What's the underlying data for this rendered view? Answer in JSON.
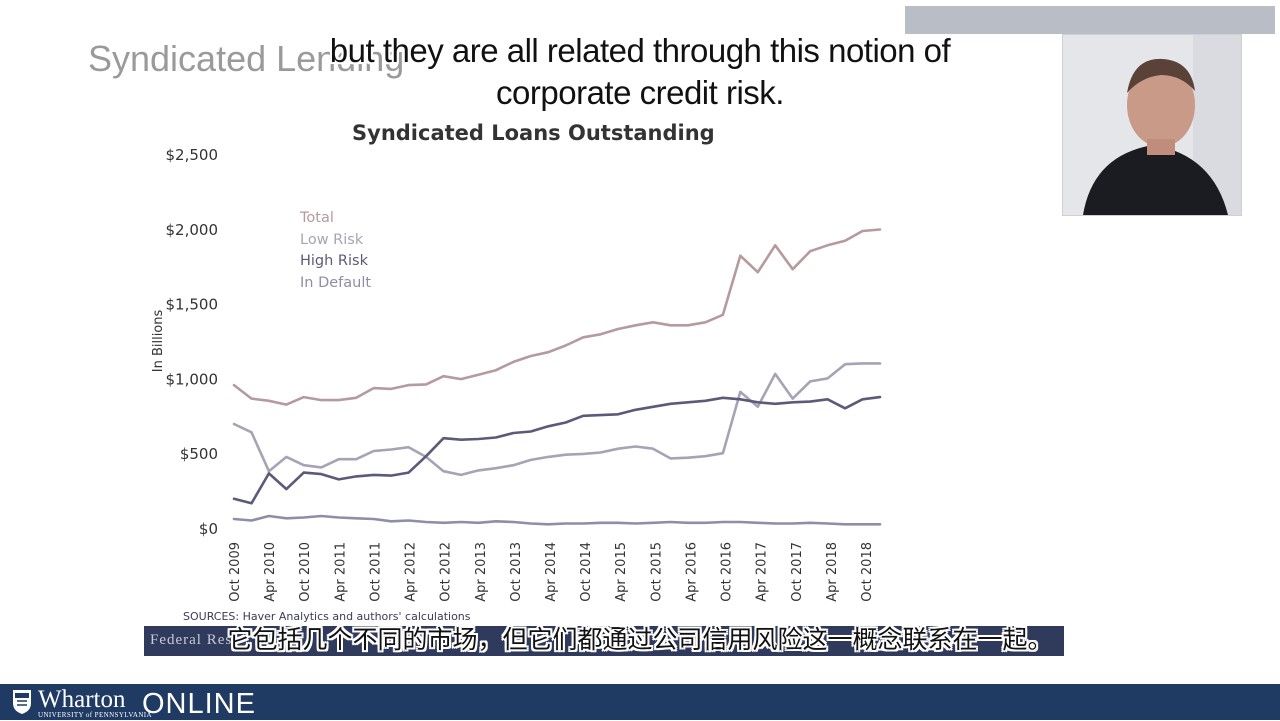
{
  "slide": {
    "title": "Syndicated Lending",
    "sources": "SOURCES: Haver Analytics and authors' calculations",
    "banner_text": "Federal Res"
  },
  "captions": {
    "english": "but they are all related through this notion of corporate credit risk.",
    "chinese": "它包括几个不同的市场，但它们都通过公司信用风险这一概念联系在一起。"
  },
  "footer": {
    "brand": "Wharton",
    "brand_sub": "UNIVERSITY of PENNSYLVANIA",
    "online": "ONLINE",
    "color": "#1f3a63"
  },
  "colors": {
    "total": "#b59a9e",
    "low_risk": "#a7a3b4",
    "high_risk": "#5a5a7a",
    "in_default": "#8e8ea6"
  },
  "chart_data": {
    "type": "line",
    "title": "Syndicated Loans Outstanding",
    "ylabel": "In Billions",
    "xlabel": "",
    "ylim": [
      0,
      2500
    ],
    "yticks": [
      {
        "value": 0,
        "label": "$0"
      },
      {
        "value": 500,
        "label": "$500"
      },
      {
        "value": 1000,
        "label": "$1,000"
      },
      {
        "value": 1500,
        "label": "$1,500"
      },
      {
        "value": 2000,
        "label": "$2,000"
      },
      {
        "value": 2500,
        "label": "$2,500"
      }
    ],
    "xticks": [
      "Oct 2009",
      "Apr 2010",
      "Oct 2010",
      "Apr 2011",
      "Oct 2011",
      "Apr 2012",
      "Oct 2012",
      "Apr 2013",
      "Oct 2013",
      "Apr 2014",
      "Oct 2014",
      "Apr 2015",
      "Oct 2015",
      "Apr 2016",
      "Oct 2016",
      "Apr 2017",
      "Oct 2017",
      "Apr 2018",
      "Oct 2018"
    ],
    "x_quarters": [
      "Q4 2009",
      "Q1 2010",
      "Q2 2010",
      "Q3 2010",
      "Q4 2010",
      "Q1 2011",
      "Q2 2011",
      "Q3 2011",
      "Q4 2011",
      "Q1 2012",
      "Q2 2012",
      "Q3 2012",
      "Q4 2012",
      "Q1 2013",
      "Q2 2013",
      "Q3 2013",
      "Q4 2013",
      "Q1 2014",
      "Q2 2014",
      "Q3 2014",
      "Q4 2014",
      "Q1 2015",
      "Q2 2015",
      "Q3 2015",
      "Q4 2015",
      "Q1 2016",
      "Q2 2016",
      "Q3 2016",
      "Q4 2016",
      "Q1 2017",
      "Q2 2017",
      "Q3 2017",
      "Q4 2017",
      "Q1 2018",
      "Q2 2018",
      "Q3 2018",
      "Q4 2018",
      "Q1 2019"
    ],
    "legend": [
      "Total",
      "Low Risk",
      "High Risk",
      "In Default"
    ],
    "legend_placement": "top-left",
    "grid": false,
    "series": [
      {
        "name": "Total",
        "color": "#b59a9e",
        "values": [
          955,
          865,
          850,
          825,
          875,
          855,
          855,
          870,
          935,
          930,
          955,
          960,
          1015,
          995,
          1025,
          1055,
          1110,
          1150,
          1175,
          1220,
          1275,
          1295,
          1330,
          1355,
          1375,
          1355,
          1355,
          1375,
          1425,
          1820,
          1710,
          1890,
          1730,
          1850,
          1890,
          1920,
          1985,
          1995
        ]
      },
      {
        "name": "Low Risk",
        "color": "#a7a3b4",
        "values": [
          695,
          640,
          380,
          475,
          420,
          405,
          460,
          460,
          515,
          525,
          540,
          475,
          380,
          355,
          385,
          400,
          420,
          455,
          475,
          490,
          495,
          505,
          530,
          545,
          530,
          465,
          470,
          480,
          500,
          910,
          810,
          1030,
          865,
          980,
          1000,
          1095,
          1100,
          1100
        ]
      },
      {
        "name": "High Risk",
        "color": "#5a5a7a",
        "values": [
          195,
          165,
          365,
          260,
          370,
          360,
          325,
          345,
          355,
          350,
          370,
          480,
          600,
          590,
          595,
          605,
          635,
          645,
          680,
          705,
          750,
          755,
          760,
          790,
          810,
          830,
          840,
          850,
          870,
          860,
          840,
          830,
          840,
          845,
          860,
          800,
          860,
          875
        ]
      },
      {
        "name": "In Default",
        "color": "#8e8ea6",
        "values": [
          60,
          50,
          80,
          65,
          70,
          80,
          70,
          65,
          60,
          45,
          50,
          40,
          35,
          40,
          35,
          45,
          40,
          30,
          25,
          30,
          30,
          35,
          35,
          30,
          35,
          40,
          35,
          35,
          40,
          40,
          35,
          30,
          30,
          35,
          30,
          25,
          25,
          25
        ]
      }
    ]
  }
}
